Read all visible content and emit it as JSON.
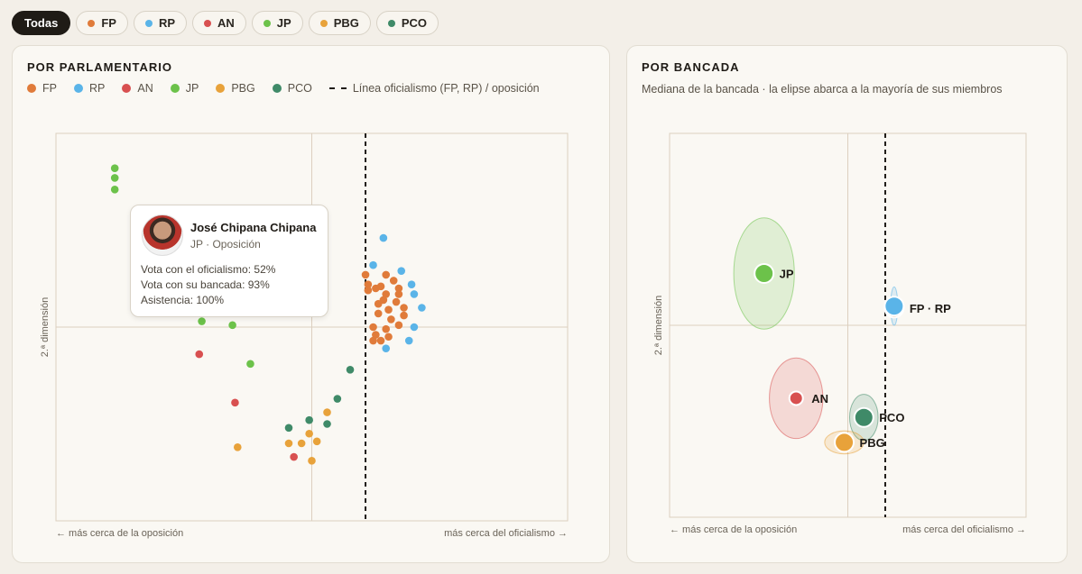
{
  "filters": [
    {
      "label": "Todas",
      "color": null,
      "active": true
    },
    {
      "label": "FP",
      "color": "#e07b3a",
      "active": false
    },
    {
      "label": "RP",
      "color": "#5ab4e8",
      "active": false
    },
    {
      "label": "AN",
      "color": "#d85050",
      "active": false
    },
    {
      "label": "JP",
      "color": "#6cc24a",
      "active": false
    },
    {
      "label": "PBG",
      "color": "#e8a23a",
      "active": false
    },
    {
      "label": "PCO",
      "color": "#3f8a68",
      "active": false
    }
  ],
  "left": {
    "title": "POR PARLAMENTARIO",
    "legend_line_label": "Línea oficialismo (FP, RP) / oposición",
    "x_left_label": "← más cerca de la oposición",
    "x_right_label": "más cerca del oficialismo →",
    "ylabel": "2.ª dimensión"
  },
  "right": {
    "title": "POR BANCADA",
    "subtitle": "Mediana de la bancada · la elipse abarca a la mayoría de sus miembros",
    "x_left_label": "← más cerca de la oposición",
    "x_right_label": "más cerca del oficialismo →",
    "ylabel": "2.ª dimensión"
  },
  "tooltip": {
    "name": "José Chipana Chipana",
    "party": "JP · Oposición",
    "line1": "Vota con el oficialismo: 52%",
    "line2": "Vota con su bancada: 93%",
    "line3": "Asistencia: 100%"
  },
  "colors": {
    "FP": "#e07b3a",
    "RP": "#5ab4e8",
    "AN": "#d85050",
    "JP": "#6cc24a",
    "PBG": "#e8a23a",
    "PCO": "#3f8a68"
  },
  "chart_data": [
    {
      "type": "scatter",
      "title": "POR PARLAMENTARIO",
      "xlabel": "",
      "ylabel": "2.ª dimensión",
      "xlim": [
        -1,
        1
      ],
      "ylim": [
        -1,
        1
      ],
      "divider_x": 0.21,
      "series": [
        {
          "name": "FP",
          "points": [
            [
              0.21,
              0.27
            ],
            [
              0.22,
              0.22
            ],
            [
              0.29,
              0.17
            ],
            [
              0.25,
              0.2
            ],
            [
              0.22,
              0.19
            ],
            [
              0.29,
              0.27
            ],
            [
              0.32,
              0.24
            ],
            [
              0.27,
              0.21
            ],
            [
              0.34,
              0.17
            ],
            [
              0.34,
              0.2
            ],
            [
              0.28,
              0.14
            ],
            [
              0.33,
              0.13
            ],
            [
              0.26,
              0.12
            ],
            [
              0.3,
              0.09
            ],
            [
              0.36,
              0.1
            ],
            [
              0.26,
              0.07
            ],
            [
              0.31,
              0.04
            ],
            [
              0.36,
              0.06
            ],
            [
              0.24,
              0.0
            ],
            [
              0.29,
              -0.01
            ],
            [
              0.34,
              0.01
            ],
            [
              0.25,
              -0.04
            ],
            [
              0.3,
              -0.05
            ],
            [
              0.27,
              -0.07
            ],
            [
              0.24,
              -0.07
            ]
          ]
        },
        {
          "name": "RP",
          "points": [
            [
              0.28,
              0.46
            ],
            [
              0.24,
              0.32
            ],
            [
              0.35,
              0.29
            ],
            [
              0.39,
              0.22
            ],
            [
              0.4,
              0.17
            ],
            [
              0.43,
              0.1
            ],
            [
              0.4,
              0.0
            ],
            [
              0.38,
              -0.07
            ],
            [
              0.29,
              -0.11
            ]
          ]
        },
        {
          "name": "AN",
          "points": [
            [
              -0.44,
              -0.14
            ],
            [
              -0.3,
              -0.39
            ],
            [
              -0.07,
              -0.67
            ]
          ]
        },
        {
          "name": "JP",
          "points": [
            [
              -0.77,
              0.82
            ],
            [
              -0.77,
              0.77
            ],
            [
              -0.77,
              0.71
            ],
            [
              -0.43,
              0.03
            ],
            [
              -0.31,
              0.01
            ],
            [
              -0.24,
              -0.19
            ]
          ]
        },
        {
          "name": "PBG",
          "points": [
            [
              -0.29,
              -0.62
            ],
            [
              -0.09,
              -0.6
            ],
            [
              -0.04,
              -0.6
            ],
            [
              0.02,
              -0.59
            ],
            [
              -0.01,
              -0.55
            ],
            [
              0.06,
              -0.44
            ],
            [
              0.0,
              -0.69
            ]
          ]
        },
        {
          "name": "PCO",
          "points": [
            [
              -0.09,
              -0.52
            ],
            [
              -0.01,
              -0.48
            ],
            [
              0.06,
              -0.5
            ],
            [
              0.1,
              -0.37
            ],
            [
              0.15,
              -0.22
            ]
          ]
        }
      ]
    },
    {
      "type": "scatter",
      "title": "POR BANCADA",
      "subtitle": "Mediana de la bancada · la elipse abarca a la mayoría de sus miembros",
      "xlabel": "",
      "ylabel": "2.ª dimensión",
      "xlim": [
        -1,
        1
      ],
      "ylim": [
        -1,
        1
      ],
      "divider_x": 0.21,
      "groups": [
        {
          "name": "JP",
          "label": "JP",
          "x": -0.47,
          "y": 0.27,
          "rx": 0.17,
          "ry": 0.29
        },
        {
          "name": "FP",
          "label": "FP · RP",
          "x": 0.26,
          "y": 0.09,
          "rx": 0.02,
          "ry": 0.04
        },
        {
          "name": "RP",
          "label": "",
          "x": 0.26,
          "y": 0.1,
          "rx": 0.02,
          "ry": 0.1
        },
        {
          "name": "AN",
          "label": "AN",
          "x": -0.29,
          "y": -0.38,
          "rx": 0.15,
          "ry": 0.21
        },
        {
          "name": "PCO",
          "label": "PCO",
          "x": 0.09,
          "y": -0.48,
          "rx": 0.08,
          "ry": 0.12
        },
        {
          "name": "PBG",
          "label": "PBG",
          "x": -0.02,
          "y": -0.61,
          "rx": 0.11,
          "ry": 0.06
        }
      ]
    }
  ]
}
